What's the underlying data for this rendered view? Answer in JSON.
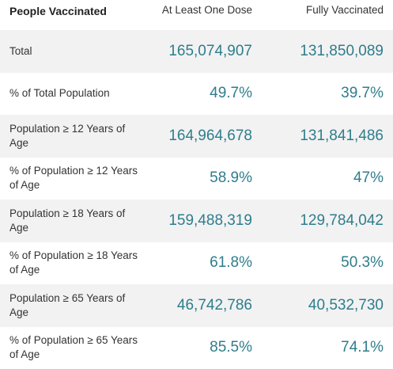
{
  "header": {
    "col0": "People Vaccinated",
    "col1": "At Least One Dose",
    "col2": "Fully Vaccinated"
  },
  "colors": {
    "value_color": "#2e7d8c",
    "row_shade": "#f2f2f2",
    "label_color": "#333333"
  },
  "rows": [
    {
      "label": "Total",
      "at_least_one_dose": "165,074,907",
      "fully_vaccinated": "131,850,089"
    },
    {
      "label": "% of Total Population",
      "at_least_one_dose": "49.7%",
      "fully_vaccinated": "39.7%"
    },
    {
      "label": "Population ≥ 12 Years of Age",
      "at_least_one_dose": "164,964,678",
      "fully_vaccinated": "131,841,486"
    },
    {
      "label": "% of Population ≥ 12 Years of Age",
      "at_least_one_dose": "58.9%",
      "fully_vaccinated": "47%"
    },
    {
      "label": "Population ≥ 18 Years of Age",
      "at_least_one_dose": "159,488,319",
      "fully_vaccinated": "129,784,042"
    },
    {
      "label": "% of Population ≥ 18 Years of Age",
      "at_least_one_dose": "61.8%",
      "fully_vaccinated": "50.3%"
    },
    {
      "label": "Population ≥ 65 Years of Age",
      "at_least_one_dose": "46,742,786",
      "fully_vaccinated": "40,532,730"
    },
    {
      "label": "% of Population ≥ 65 Years of Age",
      "at_least_one_dose": "85.5%",
      "fully_vaccinated": "74.1%"
    }
  ]
}
